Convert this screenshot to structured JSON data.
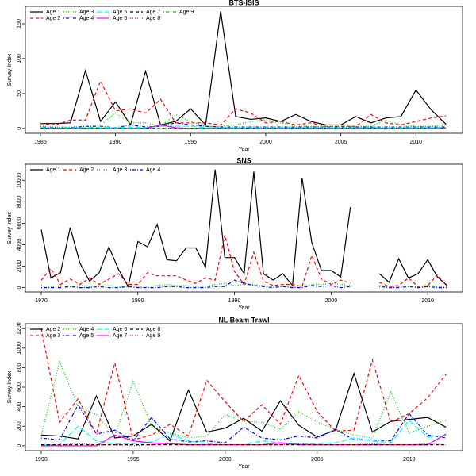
{
  "chart_data": [
    {
      "type": "line",
      "title": "BTS-ISIS",
      "xlabel": "Year",
      "ylabel": "Survey Index",
      "legend": "upper left",
      "x": [
        1985,
        1986,
        1987,
        1988,
        1989,
        1990,
        1991,
        1992,
        1993,
        1994,
        1995,
        1996,
        1997,
        1998,
        1999,
        2000,
        2001,
        2002,
        2003,
        2004,
        2005,
        2006,
        2007,
        2008,
        2009,
        2010,
        2011,
        2012
      ],
      "xlim": [
        1984,
        2013.1
      ],
      "xticks": [
        1985,
        1990,
        1995,
        2000,
        2005,
        2010
      ],
      "ylim": [
        -7,
        175
      ],
      "yticks": [
        0,
        50,
        100,
        150
      ],
      "series": [
        {
          "name": "Age 1",
          "color": "#000000",
          "linestyle": "solid",
          "values": [
            7,
            7,
            8,
            83,
            10,
            38,
            5,
            82,
            5,
            10,
            28,
            5,
            168,
            17,
            13,
            15,
            10,
            20,
            10,
            5,
            5,
            17,
            8,
            15,
            17,
            55,
            27,
            6
          ]
        },
        {
          "name": "Age 2",
          "color": "#ff0000",
          "linestyle": "dashed",
          "values": [
            7,
            5,
            12,
            12,
            68,
            25,
            28,
            22,
            42,
            8,
            8,
            8,
            5,
            28,
            22,
            8,
            10,
            5,
            8,
            3,
            3,
            3,
            20,
            8,
            5,
            10,
            15,
            18
          ]
        },
        {
          "name": "Age 3",
          "color": "#00cd00",
          "linestyle": "dotted",
          "values": [
            3,
            2,
            2,
            2,
            5,
            22,
            8,
            8,
            3,
            20,
            10,
            3,
            3,
            5,
            10,
            12,
            8,
            3,
            3,
            3,
            3,
            3,
            3,
            12,
            5,
            3,
            3,
            5
          ]
        },
        {
          "name": "Age 4",
          "color": "#0000ff",
          "linestyle": "dotdash",
          "values": [
            2,
            1,
            1,
            3,
            3,
            1,
            5,
            2,
            3,
            8,
            5,
            3,
            2,
            2,
            2,
            2,
            2,
            2,
            2,
            2,
            2,
            2,
            2,
            2,
            2,
            2,
            2,
            2
          ]
        },
        {
          "name": "Age 5",
          "color": "#00ffff",
          "linestyle": "longdash",
          "values": [
            1,
            1,
            1,
            1,
            2,
            1,
            2,
            1,
            3,
            3,
            3,
            1,
            1,
            1,
            1,
            1,
            1,
            1,
            1,
            1,
            1,
            1,
            1,
            1,
            1,
            1,
            1,
            1
          ]
        },
        {
          "name": "Age 6",
          "color": "#ff00ff",
          "linestyle": "solid",
          "values": [
            0,
            0,
            0,
            0,
            0,
            0,
            0,
            0,
            5,
            1,
            0,
            0,
            0,
            0,
            0,
            0,
            0,
            0,
            0,
            0,
            0,
            0,
            0,
            0,
            0,
            0,
            0,
            0
          ]
        },
        {
          "name": "Age 7",
          "color": "#000000",
          "linestyle": "dashed",
          "values": [
            0,
            0,
            0,
            0,
            0,
            0,
            0,
            0,
            0,
            0,
            0,
            0,
            0,
            0,
            0,
            0,
            0,
            0,
            0,
            0,
            0,
            0,
            0,
            0,
            0,
            0,
            0,
            0
          ]
        },
        {
          "name": "Age 8",
          "color": "#ff0000",
          "linestyle": "dotted",
          "values": [
            0,
            0,
            0,
            0,
            0,
            0,
            0,
            0,
            0,
            0,
            0,
            0,
            0,
            0,
            0,
            0,
            0,
            0,
            0,
            0,
            0,
            0,
            0,
            0,
            0,
            0,
            0,
            0
          ]
        },
        {
          "name": "Age 9",
          "color": "#00cd00",
          "linestyle": "dotdash",
          "values": [
            0,
            0,
            0,
            0,
            0,
            0,
            0,
            0,
            0,
            0,
            0,
            0,
            0,
            0,
            0,
            0,
            0,
            0,
            0,
            0,
            0,
            0,
            0,
            0,
            0,
            0,
            0,
            1
          ]
        }
      ]
    },
    {
      "type": "line",
      "title": "SNS",
      "xlabel": "Year",
      "ylabel": "Survey Index",
      "legend": "upper left",
      "x": [
        1970,
        1971,
        1972,
        1973,
        1974,
        1975,
        1976,
        1977,
        1978,
        1979,
        1980,
        1981,
        1982,
        1983,
        1984,
        1985,
        1986,
        1987,
        1988,
        1989,
        1990,
        1991,
        1992,
        1993,
        1994,
        1995,
        1996,
        1997,
        1998,
        1999,
        2000,
        2001,
        2002,
        2003,
        2004,
        2005,
        2006,
        2007,
        2008,
        2009,
        2010,
        2011,
        2012
      ],
      "xlim": [
        1968.36,
        2013.6
      ],
      "xticks": [
        1970,
        1980,
        1990,
        2000,
        2010
      ],
      "ylim": [
        -400,
        11500
      ],
      "yticks": [
        0,
        2000,
        4000,
        6000,
        8000,
        10000
      ],
      "series": [
        {
          "name": "Age 1",
          "color": "#000000",
          "linestyle": "solid",
          "values": [
            5400,
            900,
            1400,
            5600,
            2300,
            600,
            1400,
            3800,
            1700,
            100,
            4300,
            3800,
            5900,
            2600,
            2500,
            3700,
            3700,
            1900,
            11000,
            2800,
            2800,
            1300,
            10800,
            1300,
            700,
            1300,
            200,
            10200,
            4200,
            1600,
            1600,
            1000,
            7500,
            null,
            null,
            1300,
            500,
            2700,
            900,
            1300,
            2600,
            1000,
            200
          ]
        },
        {
          "name": "Age 2",
          "color": "#ff0000",
          "linestyle": "dashed",
          "values": [
            700,
            1800,
            300,
            800,
            300,
            900,
            300,
            800,
            1300,
            300,
            300,
            1400,
            1100,
            1100,
            1100,
            700,
            400,
            900,
            700,
            4900,
            1500,
            300,
            3300,
            600,
            200,
            300,
            300,
            100,
            3000,
            800,
            300,
            700,
            400,
            null,
            null,
            500,
            100,
            200,
            900,
            100,
            200,
            1200,
            100
          ]
        },
        {
          "name": "Age 3",
          "color": "#00cd00",
          "linestyle": "dotted",
          "values": [
            200,
            100,
            100,
            100,
            200,
            100,
            100,
            200,
            100,
            100,
            100,
            100,
            200,
            300,
            200,
            200,
            100,
            100,
            300,
            400,
            200,
            300,
            300,
            200,
            100,
            100,
            100,
            100,
            300,
            300,
            400,
            300,
            200,
            null,
            null,
            200,
            100,
            100,
            100,
            100,
            200,
            100,
            100
          ]
        },
        {
          "name": "Age 4",
          "color": "#0000ff",
          "linestyle": "dotdash",
          "values": [
            0,
            0,
            0,
            100,
            0,
            0,
            100,
            0,
            0,
            100,
            0,
            0,
            0,
            100,
            100,
            0,
            0,
            0,
            100,
            100,
            700,
            400,
            200,
            100,
            0,
            100,
            0,
            0,
            200,
            100,
            200,
            0,
            100,
            null,
            null,
            100,
            0,
            0,
            100,
            0,
            100,
            0,
            0
          ]
        }
      ]
    },
    {
      "type": "line",
      "title": "NL Beam Trawl",
      "xlabel": "Year",
      "ylabel": "Survey Index",
      "legend": "upper left",
      "x": [
        1990,
        1991,
        1992,
        1993,
        1994,
        1995,
        1996,
        1997,
        1998,
        1999,
        2000,
        2001,
        2002,
        2003,
        2004,
        2005,
        2006,
        2007,
        2008,
        2009,
        2010,
        2011,
        2012
      ],
      "xlim": [
        1989.14,
        2012.9
      ],
      "xticks": [
        1990,
        1995,
        2000,
        2005,
        2010
      ],
      "ylim": [
        -50,
        1250
      ],
      "yticks": [
        0,
        200,
        400,
        600,
        800,
        1000,
        1200
      ],
      "series": [
        {
          "name": "Age 2",
          "color": "#000000",
          "linestyle": "solid",
          "values": [
            110,
            100,
            70,
            510,
            80,
            100,
            220,
            50,
            570,
            140,
            180,
            280,
            150,
            460,
            210,
            90,
            160,
            740,
            140,
            250,
            270,
            290,
            190
          ]
        },
        {
          "name": "Age 3",
          "color": "#ff0000",
          "linestyle": "dashed",
          "values": [
            1200,
            240,
            480,
            120,
            850,
            60,
            110,
            220,
            100,
            670,
            450,
            250,
            420,
            220,
            720,
            350,
            150,
            160,
            880,
            240,
            330,
            490,
            730
          ]
        },
        {
          "name": "Age 4",
          "color": "#00cd00",
          "linestyle": "dotted",
          "values": [
            100,
            860,
            400,
            320,
            100,
            660,
            200,
            130,
            80,
            100,
            320,
            250,
            240,
            170,
            350,
            240,
            170,
            110,
            80,
            550,
            130,
            200,
            260
          ]
        },
        {
          "name": "Age 5",
          "color": "#0000ff",
          "linestyle": "dotdash",
          "values": [
            80,
            60,
            420,
            120,
            160,
            50,
            290,
            70,
            40,
            50,
            30,
            190,
            80,
            60,
            100,
            80,
            170,
            60,
            60,
            50,
            330,
            110,
            80
          ]
        },
        {
          "name": "Age 6",
          "color": "#00ffff",
          "linestyle": "longdash",
          "values": [
            10,
            10,
            200,
            50,
            20,
            20,
            40,
            120,
            50,
            20,
            10,
            10,
            50,
            30,
            20,
            20,
            30,
            80,
            50,
            30,
            260,
            90,
            110
          ]
        },
        {
          "name": "Age 7",
          "color": "#ff00ff",
          "linestyle": "solid",
          "values": [
            0,
            0,
            0,
            0,
            110,
            50,
            30,
            20,
            10,
            10,
            10,
            10,
            10,
            30,
            10,
            10,
            10,
            10,
            10,
            10,
            10,
            10,
            120
          ]
        },
        {
          "name": "Age 8",
          "color": "#000000",
          "linestyle": "dashed",
          "values": [
            10,
            10,
            10,
            10,
            10,
            10,
            10,
            10,
            10,
            10,
            10,
            10,
            10,
            10,
            10,
            10,
            10,
            10,
            10,
            10,
            10,
            10,
            10
          ]
        },
        {
          "name": "Age 9",
          "color": "#ff0000",
          "linestyle": "dotted",
          "values": [
            0,
            10,
            20,
            10,
            10,
            0,
            10,
            20,
            10,
            10,
            10,
            10,
            10,
            10,
            20,
            10,
            10,
            10,
            20,
            10,
            10,
            20,
            10
          ]
        }
      ]
    }
  ]
}
